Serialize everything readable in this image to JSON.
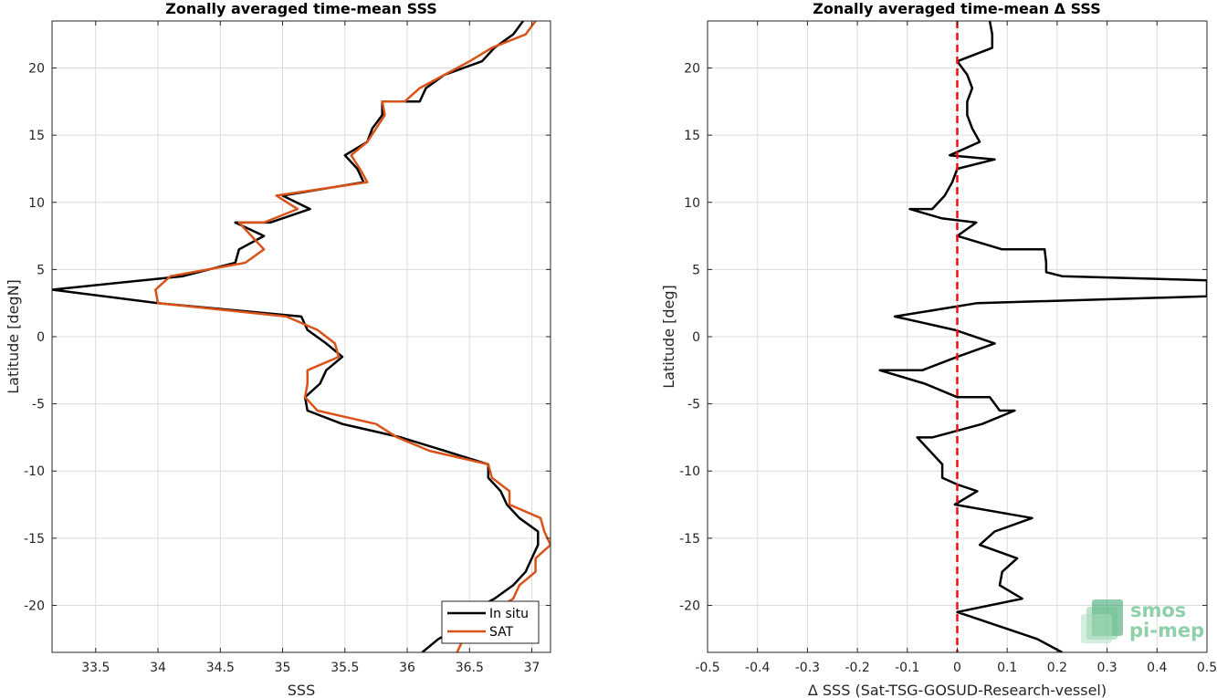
{
  "chart_data": [
    {
      "type": "line",
      "title": "Zonally averaged time-mean SSS",
      "xlabel": "SSS",
      "ylabel": "Latitude [degN]",
      "xlim": [
        33.15,
        37.15
      ],
      "ylim": [
        -23.5,
        23.5
      ],
      "xticks": [
        33.5,
        34,
        34.5,
        35,
        35.5,
        36,
        36.5,
        37
      ],
      "xtick_labels": [
        "33.5",
        "34",
        "34.5",
        "35",
        "35.5",
        "36",
        "36.5",
        "37"
      ],
      "yticks": [
        -20,
        -15,
        -10,
        -5,
        0,
        5,
        10,
        15,
        20
      ],
      "ytick_labels": [
        "-20",
        "-15",
        "-10",
        "-5",
        "0",
        "5",
        "10",
        "15",
        "20"
      ],
      "grid": true,
      "legend_position": "bottom-right",
      "series": [
        {
          "name": "In situ",
          "color": "#000000",
          "points": [
            [
              36.93,
              23.5
            ],
            [
              36.85,
              22.5
            ],
            [
              36.7,
              21.5
            ],
            [
              36.6,
              20.5
            ],
            [
              36.3,
              19.5
            ],
            [
              36.15,
              18.5
            ],
            [
              36.1,
              17.5
            ],
            [
              35.8,
              17.5
            ],
            [
              35.8,
              16.5
            ],
            [
              35.72,
              15.5
            ],
            [
              35.68,
              14.5
            ],
            [
              35.5,
              13.5
            ],
            [
              35.6,
              12.5
            ],
            [
              35.65,
              11.5
            ],
            [
              35,
              10.5
            ],
            [
              35.22,
              9.5
            ],
            [
              34.9,
              8.5
            ],
            [
              34.62,
              8.5
            ],
            [
              34.85,
              7.5
            ],
            [
              34.65,
              6.5
            ],
            [
              34.62,
              5.5
            ],
            [
              34.2,
              4.5
            ],
            [
              33.15,
              3.5
            ],
            [
              34,
              2.5
            ],
            [
              35.15,
              1.5
            ],
            [
              35.2,
              0.5
            ],
            [
              35.35,
              -0.5
            ],
            [
              35.48,
              -1.5
            ],
            [
              35.35,
              -2.5
            ],
            [
              35.3,
              -3.5
            ],
            [
              35.18,
              -4.5
            ],
            [
              35.2,
              -5.5
            ],
            [
              35.48,
              -6.5
            ],
            [
              35.95,
              -7.5
            ],
            [
              36.3,
              -8.5
            ],
            [
              36.65,
              -9.5
            ],
            [
              36.65,
              -10.5
            ],
            [
              36.75,
              -11.5
            ],
            [
              36.8,
              -12.5
            ],
            [
              36.9,
              -13.5
            ],
            [
              37.05,
              -14.5
            ],
            [
              37.05,
              -15.5
            ],
            [
              37,
              -16.5
            ],
            [
              36.95,
              -17.5
            ],
            [
              36.85,
              -18.5
            ],
            [
              36.7,
              -19.5
            ],
            [
              36.5,
              -20.5
            ],
            [
              36.45,
              -21.5
            ],
            [
              36.25,
              -22.5
            ],
            [
              36.12,
              -23.5
            ]
          ]
        },
        {
          "name": "SAT",
          "color": "#d95319",
          "points": [
            [
              37.03,
              23.5
            ],
            [
              36.95,
              22.5
            ],
            [
              36.68,
              21.5
            ],
            [
              36.5,
              20.5
            ],
            [
              36.3,
              19.5
            ],
            [
              36.1,
              18.5
            ],
            [
              35.98,
              17.5
            ],
            [
              35.8,
              17.5
            ],
            [
              35.82,
              16.5
            ],
            [
              35.75,
              15.5
            ],
            [
              35.68,
              14.5
            ],
            [
              35.55,
              13.5
            ],
            [
              35.62,
              12.5
            ],
            [
              35.68,
              11.5
            ],
            [
              34.95,
              10.5
            ],
            [
              35.12,
              9.5
            ],
            [
              34.85,
              8.5
            ],
            [
              34.65,
              8.5
            ],
            [
              34.75,
              7.5
            ],
            [
              34.85,
              6.5
            ],
            [
              34.7,
              5.5
            ],
            [
              34.1,
              4.5
            ],
            [
              33.98,
              3.5
            ],
            [
              34,
              2.5
            ],
            [
              35.03,
              1.5
            ],
            [
              35.28,
              0.5
            ],
            [
              35.42,
              -0.5
            ],
            [
              35.45,
              -1.5
            ],
            [
              35.2,
              -2.5
            ],
            [
              35.2,
              -3.5
            ],
            [
              35.18,
              -4.5
            ],
            [
              35.28,
              -5.5
            ],
            [
              35.75,
              -6.5
            ],
            [
              35.92,
              -7.5
            ],
            [
              36.18,
              -8.5
            ],
            [
              36.65,
              -9.5
            ],
            [
              36.68,
              -10.5
            ],
            [
              36.82,
              -11.5
            ],
            [
              36.82,
              -12.5
            ],
            [
              37.07,
              -13.5
            ],
            [
              37.1,
              -14.5
            ],
            [
              37.15,
              -15.5
            ],
            [
              37.03,
              -16.5
            ],
            [
              37.03,
              -17.5
            ],
            [
              36.9,
              -18.5
            ],
            [
              36.85,
              -19.5
            ],
            [
              36.68,
              -20.5
            ],
            [
              36.5,
              -21.5
            ],
            [
              36.45,
              -22.5
            ],
            [
              36.4,
              -23.5
            ]
          ]
        }
      ]
    },
    {
      "type": "line",
      "title": "Zonally averaged time-mean Δ SSS",
      "xlabel": "Δ SSS (Sat-TSG-GOSUD-Research-vessel)",
      "ylabel": "Latitude [deg]",
      "xlim": [
        -0.5,
        0.5
      ],
      "ylim": [
        -23.5,
        23.5
      ],
      "xticks": [
        -0.5,
        -0.4,
        -0.3,
        -0.2,
        -0.1,
        0,
        0.1,
        0.2,
        0.3,
        0.4,
        0.5
      ],
      "xtick_labels": [
        "-0.5",
        "-0.4",
        "-0.3",
        "-0.2",
        "-0.1",
        "0",
        "0.1",
        "0.2",
        "0.3",
        "0.4",
        "0.5"
      ],
      "yticks": [
        -20,
        -15,
        -10,
        -5,
        0,
        5,
        10,
        15,
        20
      ],
      "ytick_labels": [
        "-20",
        "-15",
        "-10",
        "-5",
        "0",
        "5",
        "10",
        "15",
        "20"
      ],
      "grid": true,
      "reference_line": {
        "x": 0,
        "color": "#ee1111",
        "style": "dashed"
      },
      "series": [
        {
          "color": "#000000",
          "points": [
            [
              0.065,
              23.5
            ],
            [
              0.07,
              22.5
            ],
            [
              0.07,
              21.5
            ],
            [
              0,
              20.5
            ],
            [
              0.02,
              19.5
            ],
            [
              0.03,
              18.5
            ],
            [
              0.02,
              17.5
            ],
            [
              0.02,
              16.5
            ],
            [
              0.03,
              15.5
            ],
            [
              0.045,
              14.5
            ],
            [
              -0.015,
              13.5
            ],
            [
              0.075,
              13.2
            ],
            [
              0,
              12.5
            ],
            [
              -0.01,
              11.5
            ],
            [
              -0.025,
              10.5
            ],
            [
              -0.05,
              9.5
            ],
            [
              -0.095,
              9.5
            ],
            [
              -0.03,
              8.8
            ],
            [
              0.038,
              8.5
            ],
            [
              0,
              7.5
            ],
            [
              0.09,
              6.5
            ],
            [
              0.175,
              6.5
            ],
            [
              0.178,
              5.5
            ],
            [
              0.178,
              4.8
            ],
            [
              0.21,
              4.5
            ],
            [
              0.5,
              4.2
            ],
            [
              0.5,
              3
            ],
            [
              0.04,
              2.5
            ],
            [
              -0.125,
              1.5
            ],
            [
              -0.005,
              0.5
            ],
            [
              0.075,
              -0.5
            ],
            [
              0,
              -1.5
            ],
            [
              -0.07,
              -2.5
            ],
            [
              -0.155,
              -2.5
            ],
            [
              -0.065,
              -3.5
            ],
            [
              0,
              -4.5
            ],
            [
              0.065,
              -4.5
            ],
            [
              0.085,
              -5.5
            ],
            [
              0.115,
              -5.5
            ],
            [
              0.05,
              -6.5
            ],
            [
              -0.05,
              -7.5
            ],
            [
              -0.08,
              -7.5
            ],
            [
              -0.03,
              -9.5
            ],
            [
              -0.03,
              -10.5
            ],
            [
              0,
              -11
            ],
            [
              0.04,
              -11.5
            ],
            [
              -0.005,
              -12.5
            ],
            [
              0.15,
              -13.5
            ],
            [
              0.075,
              -14.5
            ],
            [
              0.045,
              -15.5
            ],
            [
              0.12,
              -16.5
            ],
            [
              0.09,
              -17.5
            ],
            [
              0.085,
              -18.5
            ],
            [
              0.13,
              -19.5
            ],
            [
              0,
              -20.5
            ],
            [
              0.08,
              -21.5
            ],
            [
              0.16,
              -22.5
            ],
            [
              0.21,
              -23.5
            ]
          ]
        }
      ],
      "logo_text": [
        "smos",
        "pi-mep"
      ]
    }
  ]
}
